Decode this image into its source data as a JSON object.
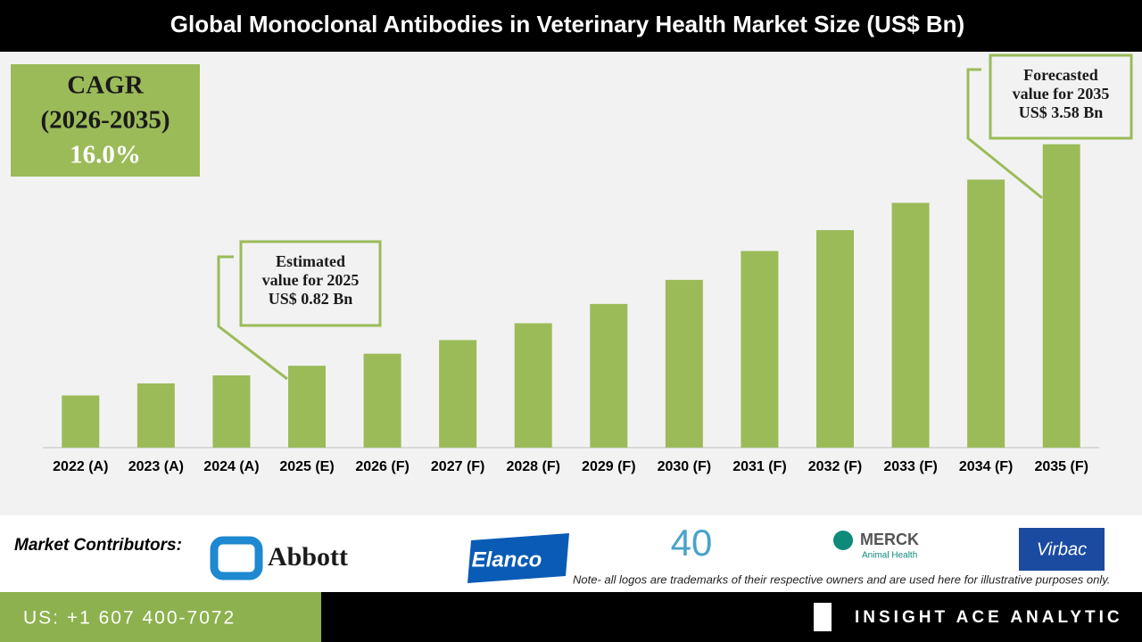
{
  "chart_data": {
    "type": "bar",
    "title": "Global Monoclonal Antibodies in Veterinary Health Market Size (US$ Bn)",
    "categories": [
      "2022 (A)",
      "2023 (A)",
      "2024 (A)",
      "2025 (E)",
      "2026 (F)",
      "2027 (F)",
      "2028 (F)",
      "2029 (F)",
      "2030 (F)",
      "2031 (F)",
      "2032 (F)",
      "2033 (F)",
      "2034 (F)",
      "2035 (F)"
    ],
    "values": [
      0.45,
      0.6,
      0.7,
      0.82,
      0.97,
      1.14,
      1.35,
      1.59,
      1.89,
      2.25,
      2.51,
      2.85,
      3.14,
      3.58
    ],
    "color": "#9bbb59",
    "ylim": [
      -0.2,
      3.8
    ]
  },
  "cagr": [
    "CAGR",
    "(2026-2035)",
    "16.0%"
  ],
  "callouts": [
    [
      "Estimated",
      "value for 2025",
      "US$ 0.82 Bn"
    ],
    [
      "Forecasted",
      "value for 2035",
      "US$ 3.58 Bn"
    ]
  ],
  "contributors": {
    "label": "Market Contributors:",
    "logos": [
      "Abbott",
      "Elanco",
      "40",
      "MERCK",
      "Animal Health",
      "Virbac"
    ],
    "note": "Note- all logos are trademarks of their respective owners and are used here for illustrative purposes only."
  },
  "footer": {
    "phone": "US: +1 607 400-7072",
    "brand": "INSIGHT ACE ANALYTIC"
  }
}
